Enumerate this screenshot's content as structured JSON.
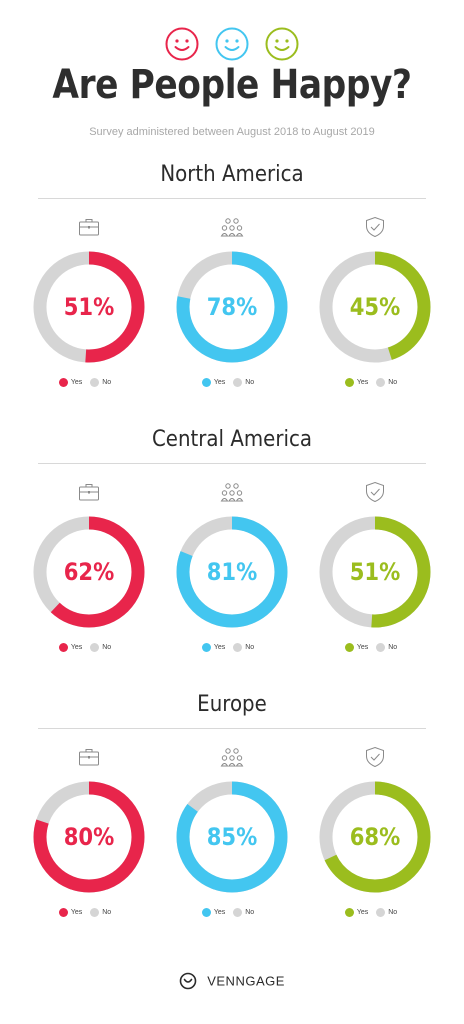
{
  "header": {
    "title": "Are People Happy?",
    "subtitle": "Survey administered between August 2018 to August 2019"
  },
  "colors": {
    "red": "#e8254b",
    "blue": "#43c6f0",
    "green": "#9bbd1e",
    "no": "#d5d5d5"
  },
  "icons": [
    "briefcase-icon",
    "people-group-icon",
    "shield-check-icon"
  ],
  "legend": {
    "yes": "Yes",
    "no": "No"
  },
  "chart_data": [
    {
      "type": "pie",
      "title": "North America",
      "categories": [
        "Yes",
        "No"
      ],
      "series": [
        {
          "values": [
            51,
            49
          ],
          "label": "51%"
        },
        {
          "values": [
            78,
            22
          ],
          "label": "78%"
        },
        {
          "values": [
            45,
            55
          ],
          "label": "45%"
        }
      ]
    },
    {
      "type": "pie",
      "title": "Central America",
      "categories": [
        "Yes",
        "No"
      ],
      "series": [
        {
          "values": [
            62,
            38
          ],
          "label": "62%"
        },
        {
          "values": [
            81,
            19
          ],
          "label": "81%"
        },
        {
          "values": [
            51,
            49
          ],
          "label": "51%"
        }
      ]
    },
    {
      "type": "pie",
      "title": "Europe",
      "categories": [
        "Yes",
        "No"
      ],
      "series": [
        {
          "values": [
            80,
            20
          ],
          "label": "80%"
        },
        {
          "values": [
            85,
            15
          ],
          "label": "85%"
        },
        {
          "values": [
            68,
            32
          ],
          "label": "68%"
        }
      ]
    }
  ],
  "footer": {
    "brand": "VENNGAGE"
  }
}
